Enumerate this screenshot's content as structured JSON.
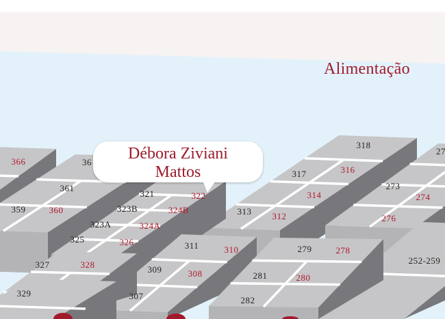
{
  "section_title": "Alimentação",
  "callout": {
    "line1": "Débora Ziviani",
    "line2": "Mattos"
  },
  "colors": {
    "highlight": "#b2182b",
    "normal": "#222222",
    "callout_text": "#9c1b2b",
    "block_top": "#c6c6c8",
    "block_side": "#78787c",
    "background": "#e3f2fa"
  },
  "booths": [
    {
      "id": "366",
      "highlight": true
    },
    {
      "id": "36",
      "highlight": false
    },
    {
      "id": "361",
      "highlight": false
    },
    {
      "id": "359",
      "highlight": false
    },
    {
      "id": "360",
      "highlight": true
    },
    {
      "id": "321",
      "highlight": false
    },
    {
      "id": "322",
      "highlight": true
    },
    {
      "id": "323B",
      "highlight": false
    },
    {
      "id": "324B",
      "highlight": true
    },
    {
      "id": "323A",
      "highlight": false
    },
    {
      "id": "324A",
      "highlight": true
    },
    {
      "id": "325",
      "highlight": false
    },
    {
      "id": "326",
      "highlight": true
    },
    {
      "id": "327",
      "highlight": false
    },
    {
      "id": "328",
      "highlight": true
    },
    {
      "id": "329",
      "highlight": false
    },
    {
      "id": "311",
      "highlight": false
    },
    {
      "id": "310",
      "highlight": true
    },
    {
      "id": "309",
      "highlight": false
    },
    {
      "id": "308",
      "highlight": true
    },
    {
      "id": "307",
      "highlight": false
    },
    {
      "id": "318",
      "highlight": false
    },
    {
      "id": "317",
      "highlight": false
    },
    {
      "id": "316",
      "highlight": true
    },
    {
      "id": "313",
      "highlight": false
    },
    {
      "id": "314",
      "highlight": true
    },
    {
      "id": "312",
      "highlight": true
    },
    {
      "id": "273",
      "highlight": false
    },
    {
      "id": "274",
      "highlight": true
    },
    {
      "id": "276",
      "highlight": true
    },
    {
      "id": "27",
      "highlight": false
    },
    {
      "id": "279",
      "highlight": false
    },
    {
      "id": "278",
      "highlight": true
    },
    {
      "id": "281",
      "highlight": false
    },
    {
      "id": "280",
      "highlight": true
    },
    {
      "id": "282",
      "highlight": false
    },
    {
      "id": "252-259",
      "highlight": false
    }
  ]
}
